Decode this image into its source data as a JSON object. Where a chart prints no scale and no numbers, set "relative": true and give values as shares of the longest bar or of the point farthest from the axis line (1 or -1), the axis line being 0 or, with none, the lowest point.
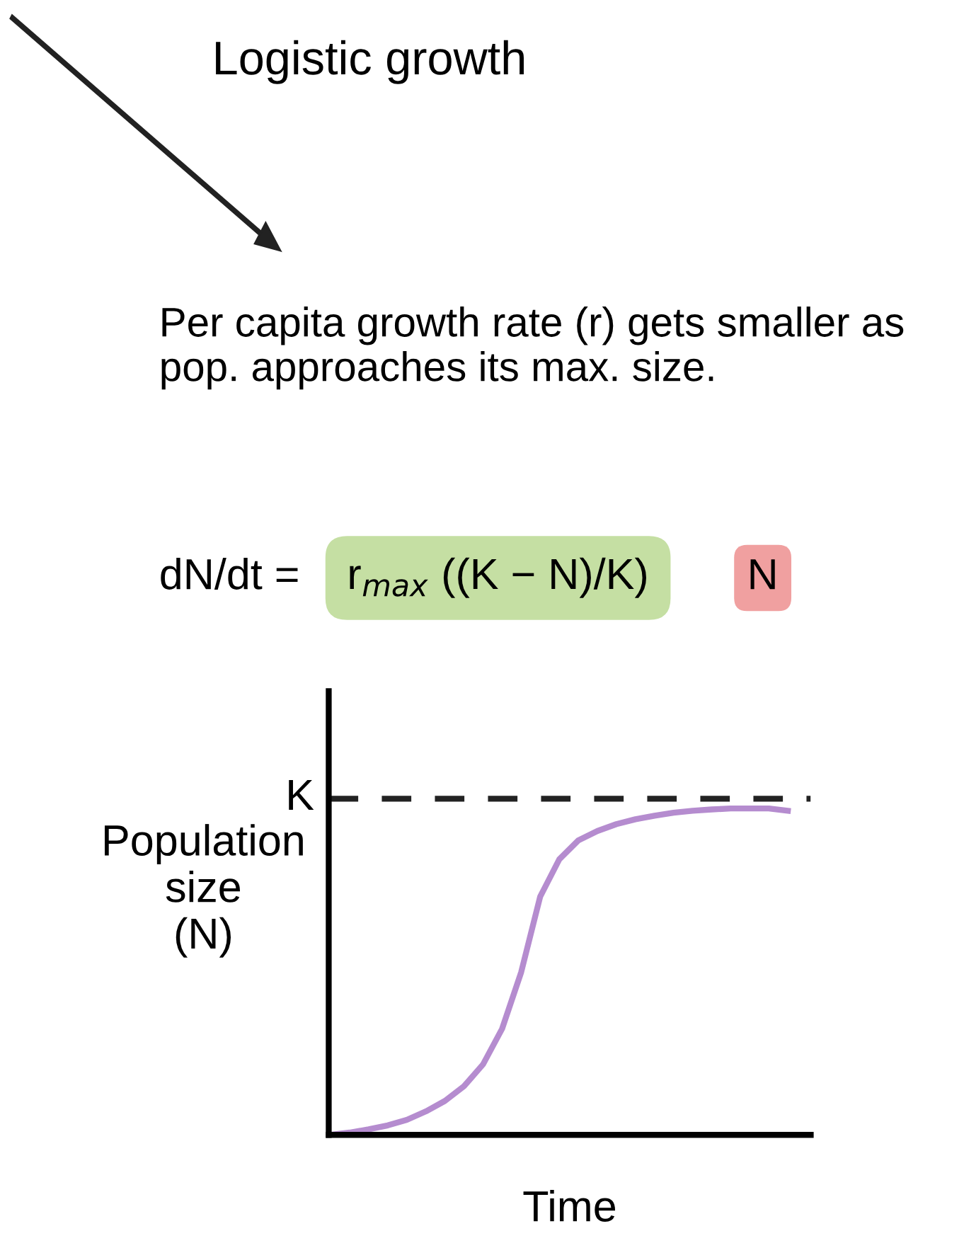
{
  "chart_data": {
    "type": "line",
    "title": "Logistic growth",
    "xlabel": "Time",
    "ylabel": "Population\nsize\n(N)",
    "relative": true,
    "annotations": [
      "Per capita growth rate (r) gets smaller as pop. approaches its max. size.",
      "dN/dt =",
      "r$_{max}$ ((K − N)/K)",
      "N"
    ],
    "categories": [
      null,
      null,
      null,
      null,
      null,
      null,
      null,
      null,
      null,
      null,
      null,
      null,
      null,
      null,
      null,
      null,
      null,
      null,
      null,
      null,
      null,
      null,
      null,
      null,
      null
    ],
    "series": [
      {
        "color": "#b58ccf",
        "values": [
          0,
          0.007,
          0.017,
          0.029,
          0.046,
          0.072,
          0.104,
          0.149,
          0.216,
          0.325,
          0.498,
          0.73,
          0.844,
          0.902,
          0.931,
          0.952,
          0.967,
          0.978,
          0.987,
          0.993,
          0.997,
          1,
          1,
          1,
          0.993
        ]
      }
    ],
    "ref_lines": [
      {
        "axis": "y",
        "value": 1.03,
        "label": "K",
        "color": "#222222",
        "line_style": "dashed"
      }
    ],
    "legend": false,
    "marker": "none",
    "line_style": "solid"
  }
}
